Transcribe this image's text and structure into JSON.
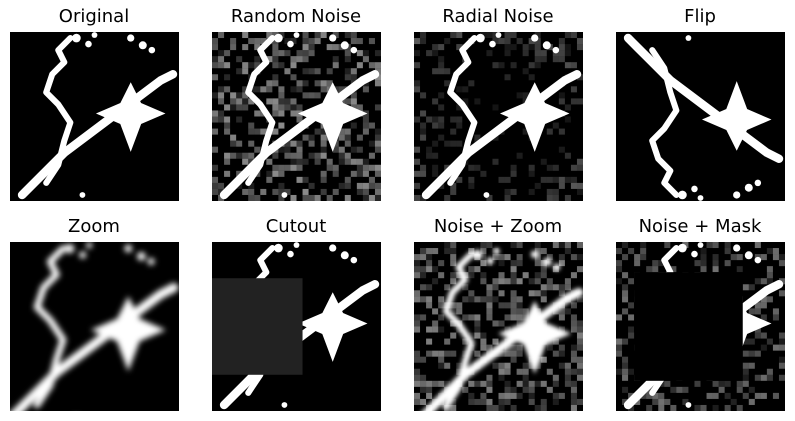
{
  "figure": {
    "background": "#ffffff",
    "image_background": "#000000",
    "stroke_color": "#ffffff",
    "cutout_fill": "#222222"
  },
  "panels": [
    {
      "title": "Original"
    },
    {
      "title": "Random Noise"
    },
    {
      "title": "Radial Noise"
    },
    {
      "title": "Flip"
    },
    {
      "title": "Zoom"
    },
    {
      "title": "Cutout"
    },
    {
      "title": "Noise + Zoom"
    },
    {
      "title": "Noise + Mask"
    }
  ]
}
